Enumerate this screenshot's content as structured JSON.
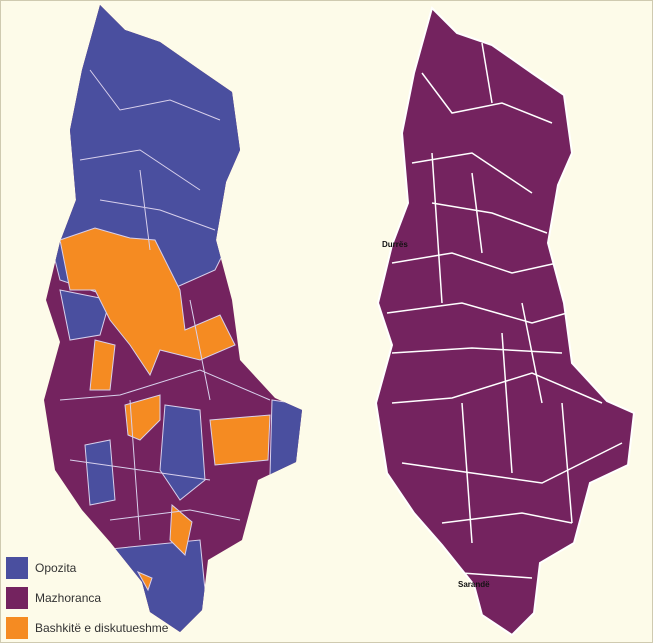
{
  "colors": {
    "opposition": "#4a4f9f",
    "majority": "#74235f",
    "disputed": "#f58b22",
    "background": "#fdfbe9",
    "borders": "#ffffff"
  },
  "legend": {
    "items": [
      {
        "label": "Opozita",
        "color": "#4a4f9f"
      },
      {
        "label": "Mazhoranca",
        "color": "#74235f"
      },
      {
        "label": "Bashkitë e diskutueshme",
        "color": "#f58b22"
      }
    ]
  },
  "right_map": {
    "labels": {
      "durres": "Durrës",
      "sarande": "Sarandë"
    }
  }
}
